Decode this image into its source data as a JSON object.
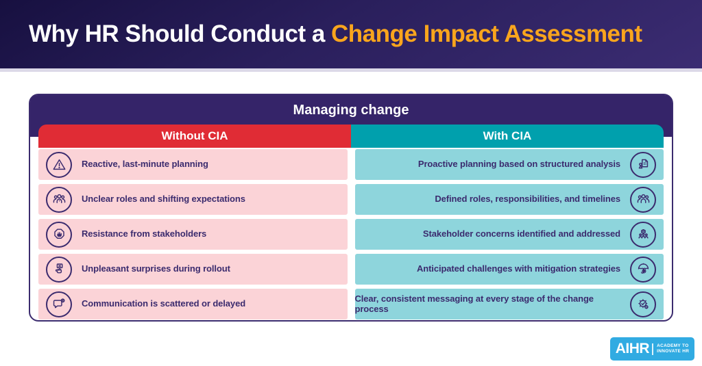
{
  "header": {
    "title_plain": "Why HR Should Conduct a ",
    "title_accent": "Change Impact Assessment"
  },
  "table": {
    "title": "Managing change",
    "columns": [
      {
        "label": "Without CIA",
        "color": "#e02c35"
      },
      {
        "label": "With CIA",
        "color": "#00a0ad"
      }
    ],
    "rows": [
      {
        "left": {
          "icon": "warning-triangle-icon",
          "label": "Reactive, last-minute planning"
        },
        "right": {
          "icon": "strategy-document-icon",
          "label": "Proactive planning based on structured analysis"
        }
      },
      {
        "left": {
          "icon": "team-question-icon",
          "label": "Unclear roles and shifting expectations"
        },
        "right": {
          "icon": "team-icon",
          "label": "Defined roles, responsibilities, and timelines"
        }
      },
      {
        "left": {
          "icon": "stop-hand-icon",
          "label": "Resistance from stakeholders"
        },
        "right": {
          "icon": "stakeholders-icon",
          "label": "Stakeholder concerns identified and addressed"
        }
      },
      {
        "left": {
          "icon": "rejected-sign-icon",
          "label": "Unpleasant surprises during rollout"
        },
        "right": {
          "icon": "umbrella-gear-icon",
          "label": "Anticipated challenges with mitigation strategies"
        }
      },
      {
        "left": {
          "icon": "chat-error-icon",
          "label": "Communication is scattered or delayed"
        },
        "right": {
          "icon": "gear-check-icon",
          "label": "Clear, consistent messaging at every stage of the change process"
        }
      }
    ]
  },
  "footer": {
    "logo_word": "AIHR",
    "logo_tagline_line1": "ACADEMY TO",
    "logo_tagline_line2": "INNOVATE HR"
  },
  "colors": {
    "hero_gradient_dark": "#171040",
    "hero_gradient_light": "#3b2c72",
    "accent_orange": "#f9a51d",
    "panel_purple": "#352469",
    "ink_purple": "#3b2b6e",
    "without_red": "#e02c35",
    "with_teal": "#00a0ad",
    "row_pink": "#fbd3d7",
    "row_teal": "#8ed5dc",
    "logo_blue": "#31abe2"
  }
}
